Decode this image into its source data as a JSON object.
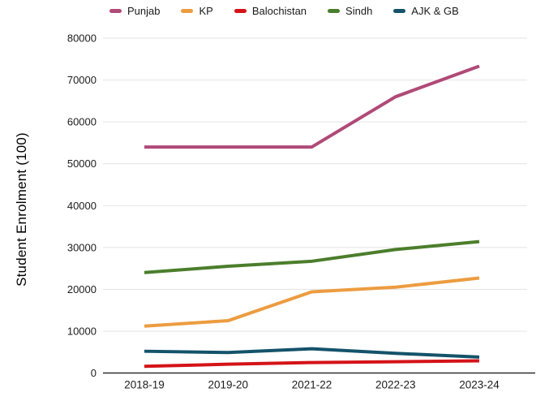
{
  "chart_data": {
    "type": "line",
    "categories": [
      "2018-19",
      "2019-20",
      "2021-22",
      "2022-23",
      "2023-24"
    ],
    "series": [
      {
        "name": "Punjab",
        "color": "#b04a78",
        "values": [
          54000,
          54000,
          54000,
          66000,
          73300
        ]
      },
      {
        "name": "KP",
        "color": "#ec9c40",
        "values": [
          11200,
          12500,
          19400,
          20500,
          22700
        ]
      },
      {
        "name": "Balochistan",
        "color": "#d41318",
        "values": [
          1600,
          2100,
          2500,
          2700,
          2900
        ]
      },
      {
        "name": "Sindh",
        "color": "#4b7e2b",
        "values": [
          24000,
          25500,
          26700,
          29500,
          31400
        ]
      },
      {
        "name": "AJK & GB",
        "color": "#14536a",
        "values": [
          5200,
          4900,
          5800,
          4700,
          3800
        ]
      }
    ],
    "title": "",
    "xlabel": "",
    "ylabel": "Student Enrolment (100)",
    "ylim": [
      0,
      80000
    ],
    "ytick_step": 10000,
    "grid": true,
    "legend_position": "top"
  }
}
